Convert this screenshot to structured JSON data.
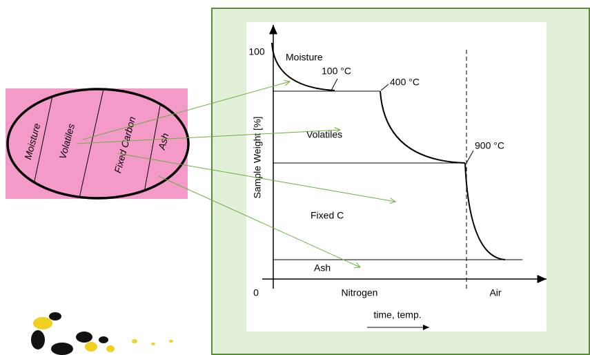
{
  "ellipse": {
    "segments": [
      "Moisture",
      "Volatiles",
      "Fixed Carbon",
      "Ash"
    ]
  },
  "plot": {
    "y_axis_label": "Sample Weight [%]",
    "y_top": "100",
    "origin": "0",
    "regions": [
      "Moisture",
      "Volatiles",
      "Fixed C",
      "Ash"
    ],
    "temperatures": [
      "100 °C",
      "400 °C",
      "900 °C"
    ],
    "atmospheres": [
      "Nitrogen",
      "Air"
    ],
    "x_axis_label": "time, temp."
  }
}
